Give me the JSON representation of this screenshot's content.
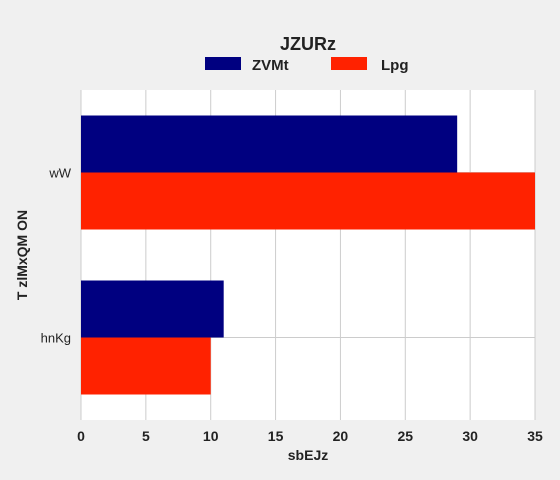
{
  "chart_data": {
    "type": "bar",
    "orientation": "horizontal",
    "title": "JZURz",
    "xlabel": "sbEJz",
    "ylabel": "T  zlMxQM ON",
    "categories": [
      "wW",
      "hnKg"
    ],
    "series": [
      {
        "name": "ZVMt",
        "values": [
          29,
          11
        ],
        "color": "#000080"
      },
      {
        "name": "Lpg",
        "values": [
          35,
          10
        ],
        "color": "#ff2200"
      }
    ],
    "xlim": [
      0,
      35
    ],
    "xticks": [
      0,
      5,
      10,
      15,
      20,
      25,
      30,
      35
    ],
    "grid": true,
    "legend_position": "top-center",
    "plot_background": "#ffffff",
    "figure_background": "#f0f0f0",
    "grid_color": "#cccccc"
  }
}
